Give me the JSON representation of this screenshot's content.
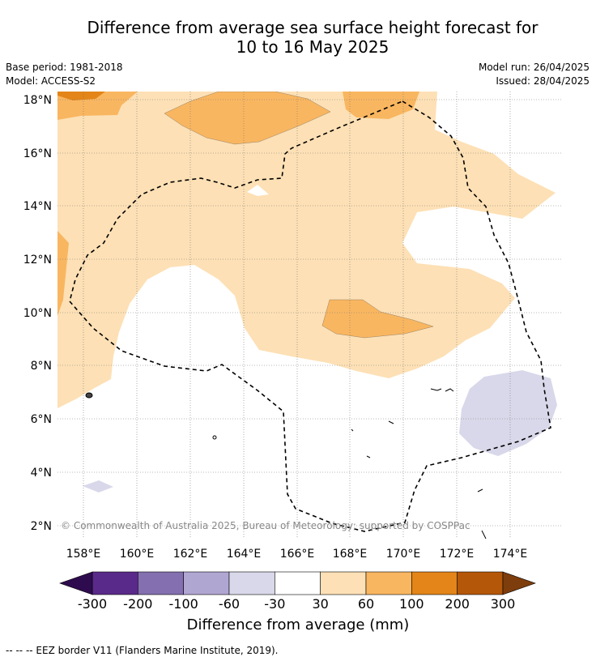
{
  "title_line1": "Difference from average sea surface height forecast for",
  "title_line2": "10 to 16 May 2025",
  "base_period": "Base period: 1981-2018",
  "model": "Model: ACCESS-S2",
  "model_run": "Model run: 26/04/2025",
  "issued": "Issued: 28/04/2025",
  "copyright": "© Commonwealth of Australia 2025, Bureau of Meteorology; supported by COSPPac",
  "lat_labels": [
    "18°N",
    "16°N",
    "14°N",
    "12°N",
    "10°N",
    "8°N",
    "6°N",
    "4°N",
    "2°N"
  ],
  "lon_labels": [
    "158°E",
    "160°E",
    "162°E",
    "164°E",
    "166°E",
    "168°E",
    "170°E",
    "172°E",
    "174°E"
  ],
  "colorbar": {
    "title": "Difference from average (mm)",
    "tick_labels": [
      "-300",
      "-200",
      "-100",
      "-60",
      "-30",
      "30",
      "60",
      "100",
      "200",
      "300"
    ],
    "colors": [
      "#5a2a8a",
      "#8470b0",
      "#b0a6d2",
      "#d8d8ea",
      "#ffffff",
      "#fde0b5",
      "#f9b660",
      "#e38518",
      "#b55708"
    ],
    "under_color": "#2e0b4e",
    "over_color": "#7e3d0c"
  },
  "legend_line": "-- -- -- EEZ border V11 (Flanders Marine Institute, 2019)."
}
